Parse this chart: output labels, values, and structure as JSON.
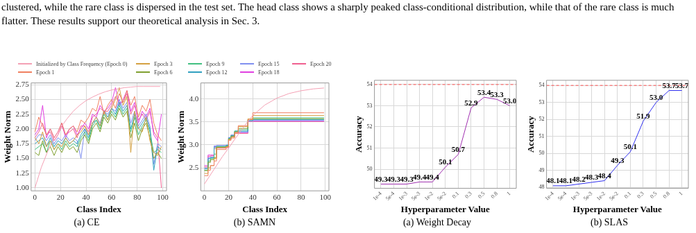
{
  "chart_data": [
    {
      "type": "line",
      "title": "(a) CE",
      "xlabel": "Class Index",
      "ylabel": "Weight Norm",
      "legend": "top",
      "grid": true,
      "annotations": [
        "clustered, while the rare class is dispersed in the test set. The head class shows a sharply peaked class-conditional distribution, while that of the rare class is much flatter. These results support our theoretical analysis in Sec. 3."
      ],
      "xlim": [
        -3,
        103
      ],
      "xticks": [
        0,
        20,
        40,
        60,
        80,
        100
      ],
      "ylim": [
        0.95,
        2.78
      ],
      "yticks": [
        {
          "value": 1,
          "label": "1.00"
        },
        1.25,
        {
          "value": 1.5,
          "label": "1.50"
        },
        1.75,
        {
          "value": 2,
          "label": "2.00"
        },
        2.25,
        {
          "value": 2.5,
          "label": "2.50"
        },
        2.75
      ],
      "x": [
        0,
        3,
        6,
        9,
        12,
        15,
        18,
        21,
        24,
        27,
        30,
        33,
        36,
        39,
        42,
        45,
        48,
        51,
        54,
        57,
        60,
        63,
        66,
        69,
        72,
        75,
        78,
        81,
        84,
        87,
        90,
        93,
        96,
        99
      ],
      "series": [
        {
          "name": "Initialized by Class Frequency (Epoch 0)",
          "color": "#f4a0b4",
          "x": [
            0,
            5,
            10,
            15,
            20,
            25,
            30,
            35,
            40,
            45,
            50,
            55,
            60,
            65,
            70,
            75,
            80,
            85,
            90,
            98
          ],
          "values": [
            1.0,
            1.35,
            1.62,
            1.85,
            2.02,
            2.17,
            2.3,
            2.4,
            2.48,
            2.54,
            2.59,
            2.63,
            2.66,
            2.68,
            2.7,
            2.71,
            2.72,
            2.72,
            2.72,
            2.72
          ]
        },
        {
          "name": "Epoch 1",
          "color": "#f08060",
          "values": [
            1.95,
            2.2,
            2.05,
            1.9,
            2.0,
            1.85,
            1.95,
            2.1,
            1.9,
            2.0,
            2.05,
            1.95,
            2.15,
            2.1,
            2.2,
            2.35,
            2.3,
            2.55,
            2.25,
            2.4,
            2.5,
            2.35,
            2.6,
            2.45,
            2.65,
            2.4,
            2.55,
            2.2,
            2.4,
            2.3,
            2.5,
            2.1,
            1.9,
            1.8
          ]
        },
        {
          "name": "Epoch 3",
          "color": "#d4a040",
          "values": [
            1.85,
            1.75,
            1.95,
            1.7,
            1.8,
            1.65,
            1.75,
            1.7,
            1.85,
            1.75,
            1.8,
            1.9,
            1.95,
            2.05,
            1.9,
            2.1,
            2.2,
            2.05,
            2.3,
            2.15,
            2.35,
            2.5,
            2.7,
            2.4,
            2.55,
            1.6,
            2.3,
            2.0,
            1.95,
            2.2,
            1.8,
            1.6,
            1.55,
            1.7
          ]
        },
        {
          "name": "Epoch 6",
          "color": "#80a030",
          "values": [
            1.6,
            1.55,
            1.8,
            1.6,
            1.7,
            1.55,
            1.7,
            1.6,
            1.75,
            1.65,
            1.7,
            1.6,
            1.8,
            1.9,
            1.75,
            2.0,
            2.1,
            1.95,
            2.2,
            2.1,
            2.25,
            2.15,
            2.35,
            2.2,
            2.3,
            1.85,
            2.1,
            1.8,
            2.0,
            2.1,
            1.85,
            1.5,
            1.6,
            1.5
          ]
        },
        {
          "name": "Epoch 9",
          "color": "#40c080",
          "values": [
            1.65,
            1.7,
            1.75,
            1.6,
            1.8,
            1.65,
            1.75,
            1.65,
            1.8,
            1.7,
            1.75,
            1.7,
            1.85,
            1.95,
            1.8,
            2.05,
            2.15,
            2.0,
            2.25,
            2.15,
            2.3,
            2.2,
            2.4,
            2.25,
            2.35,
            1.95,
            2.2,
            1.9,
            2.05,
            2.15,
            1.95,
            1.6,
            1.65,
            1.6
          ]
        },
        {
          "name": "Epoch 12",
          "color": "#30a0c0",
          "values": [
            1.75,
            1.8,
            1.85,
            1.7,
            1.85,
            1.7,
            1.8,
            1.75,
            1.85,
            1.75,
            1.8,
            1.75,
            1.9,
            2.0,
            1.85,
            2.1,
            2.15,
            2.05,
            2.3,
            2.2,
            2.35,
            2.25,
            2.45,
            2.3,
            2.4,
            2.0,
            2.25,
            2.0,
            2.1,
            2.2,
            2.0,
            1.3,
            1.7,
            1.65
          ]
        },
        {
          "name": "Epoch 15",
          "color": "#8090f0",
          "values": [
            1.8,
            1.9,
            1.9,
            1.8,
            1.9,
            1.75,
            1.85,
            1.8,
            1.9,
            1.8,
            1.85,
            1.8,
            1.5,
            2.0,
            1.9,
            2.1,
            2.2,
            2.1,
            2.3,
            2.25,
            2.35,
            2.3,
            2.5,
            2.35,
            2.45,
            2.1,
            2.3,
            2.05,
            2.15,
            2.25,
            2.05,
            1.4,
            1.75,
            1.7
          ]
        },
        {
          "name": "Epoch 18",
          "color": "#e040e0",
          "values": [
            1.9,
            2.0,
            2.4,
            1.85,
            2.0,
            1.85,
            1.95,
            2.1,
            1.85,
            2.0,
            2.05,
            1.9,
            2.0,
            2.1,
            2.0,
            2.25,
            2.2,
            2.4,
            2.3,
            2.35,
            2.45,
            2.7,
            2.4,
            2.5,
            2.65,
            2.3,
            2.45,
            2.1,
            2.3,
            2.2,
            2.35,
            1.9,
            1.8,
            2.25
          ]
        },
        {
          "name": "Epoch 20",
          "color": "#f06090",
          "values": [
            1.85,
            1.95,
            2.1,
            1.9,
            1.95,
            1.8,
            1.9,
            2.05,
            1.9,
            1.95,
            2.0,
            1.85,
            2.05,
            2.05,
            1.95,
            2.2,
            2.25,
            2.35,
            2.3,
            2.3,
            2.4,
            2.55,
            2.45,
            2.45,
            2.6,
            2.25,
            2.4,
            2.15,
            2.25,
            2.15,
            2.3,
            1.95,
            1.85,
            1.0
          ]
        }
      ]
    },
    {
      "type": "step",
      "title": "(b) SAMN",
      "xlabel": "Class Index",
      "ylabel": "Weight Norm",
      "grid": true,
      "xlim": [
        -3,
        103
      ],
      "xticks": [
        0,
        20,
        40,
        60,
        80,
        100
      ],
      "ylim": [
        2.0,
        4.35
      ],
      "yticks": [
        2.5,
        {
          "value": 3,
          "label": "3.0"
        },
        3.5,
        {
          "value": 4,
          "label": "4.0"
        }
      ],
      "x": [
        0,
        3,
        5,
        8,
        10,
        18,
        20,
        22,
        25,
        28,
        36,
        40,
        99
      ],
      "series": [
        {
          "type": "line",
          "color": "#f4a0b4",
          "x": [
            0,
            5,
            10,
            15,
            20,
            25,
            30,
            35,
            40,
            50,
            60,
            70,
            80,
            90,
            99
          ],
          "values": [
            2.15,
            2.35,
            2.55,
            2.75,
            2.93,
            3.12,
            3.3,
            3.48,
            3.64,
            3.87,
            4.02,
            4.12,
            4.18,
            4.22,
            4.24
          ]
        },
        {
          "color": "#f08060",
          "values": [
            2.33,
            2.45,
            2.55,
            2.65,
            2.9,
            2.95,
            3.1,
            3.15,
            3.25,
            3.42,
            3.55,
            3.7,
            3.7
          ]
        },
        {
          "color": "#d4a040",
          "values": [
            2.38,
            2.5,
            2.55,
            2.7,
            2.94,
            2.96,
            3.12,
            3.17,
            3.28,
            3.4,
            3.57,
            3.64,
            3.64
          ]
        },
        {
          "color": "#80a030",
          "values": [
            2.44,
            2.62,
            2.68,
            2.72,
            2.95,
            2.97,
            3.13,
            3.18,
            3.28,
            3.36,
            3.55,
            3.57,
            3.57
          ]
        },
        {
          "color": "#40c080",
          "values": [
            2.45,
            2.65,
            2.7,
            2.8,
            2.96,
            2.98,
            3.14,
            3.2,
            3.3,
            3.33,
            3.55,
            3.59,
            3.59
          ]
        },
        {
          "color": "#30a0c0",
          "values": [
            2.48,
            2.7,
            2.72,
            2.95,
            2.97,
            2.99,
            3.15,
            3.2,
            3.3,
            3.3,
            3.53,
            3.55,
            3.55
          ]
        },
        {
          "color": "#8090f0",
          "values": [
            2.5,
            2.72,
            2.74,
            2.98,
            2.99,
            3.0,
            3.16,
            3.22,
            3.3,
            3.28,
            3.52,
            3.53,
            3.53
          ]
        },
        {
          "color": "#e040e0",
          "values": [
            2.55,
            2.78,
            2.78,
            2.96,
            2.96,
            2.97,
            3.16,
            3.2,
            3.28,
            3.27,
            3.52,
            3.52,
            3.52
          ]
        },
        {
          "color": "#f06090",
          "values": [
            2.52,
            2.75,
            2.76,
            2.92,
            2.93,
            2.94,
            3.12,
            3.19,
            3.26,
            3.25,
            3.51,
            3.51,
            3.51
          ]
        }
      ]
    },
    {
      "type": "line",
      "title": "(a) Weight Decay",
      "xlabel": "Hyperparameter Value",
      "ylabel": "Accuracy",
      "grid": true,
      "categories": [
        "1e-4",
        "5e-4",
        "1e-3",
        "5e-3",
        "1e-2",
        "5e-2",
        "0.1",
        "0.3",
        "0.5",
        "0.8",
        "1"
      ],
      "ylim": [
        49.1,
        54.2
      ],
      "yticks": [
        50,
        51,
        52,
        53,
        54
      ],
      "ref_lines": [
        {
          "axis": "y",
          "value": 54,
          "color": "#ff5050",
          "line_style": "dashed"
        }
      ],
      "series": [
        {
          "color": "#a030b0",
          "values": [
            49.3,
            49.3,
            49.3,
            49.4,
            49.4,
            50.1,
            50.7,
            52.9,
            53.4,
            53.3,
            53.0
          ],
          "value_labels": [
            "49.3",
            "49.3",
            "49.3",
            "49.4",
            "49.4",
            "50.1",
            "50.7",
            "52.9",
            "53.4",
            "53.3",
            "53.0"
          ]
        }
      ]
    },
    {
      "type": "line",
      "title": "(b) SLAS",
      "xlabel": "Hyperparameter Value",
      "ylabel": "Accuracy",
      "grid": true,
      "categories": [
        "1e-4",
        "5e-4",
        "1e-3",
        "5e-3",
        "1e-2",
        "5e-2",
        "0.1",
        "0.3",
        "0.5",
        "0.8",
        "1"
      ],
      "ylim": [
        47.95,
        54.3
      ],
      "yticks": [
        48,
        49,
        50,
        51,
        52,
        53,
        54
      ],
      "ref_lines": [
        {
          "axis": "y",
          "value": 54,
          "color": "#ff5050",
          "line_style": "dashed"
        }
      ],
      "series": [
        {
          "color": "#3030f0",
          "values": [
            48.1,
            48.1,
            48.2,
            48.3,
            48.4,
            49.3,
            50.1,
            51.9,
            53.0,
            53.7,
            53.7
          ],
          "value_labels": [
            "48.1",
            "48.1",
            "48.2",
            "48.3",
            "48.4",
            "49.3",
            "50.1",
            "51.9",
            "53.0",
            "53.7",
            "53.7"
          ]
        }
      ]
    }
  ]
}
